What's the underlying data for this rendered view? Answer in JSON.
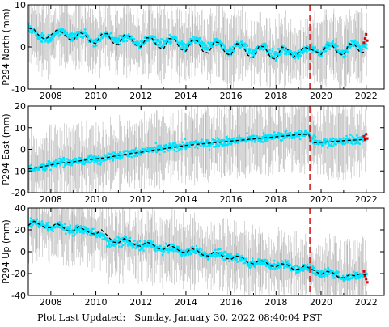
{
  "footer": {
    "label": "Plot Last Updated:",
    "value": "Sunday, January 30, 2022 08:40:04 PST"
  },
  "colors": {
    "data": "#00e5ff",
    "error_bars": "#a9a9a9",
    "model": "#000000",
    "event_line": "#d62020",
    "recent": "#e00000"
  },
  "chart_data": [
    {
      "type": "scatter",
      "title": "",
      "xlabel": "",
      "ylabel": "P294 North (mm)",
      "xlim": [
        2007.0,
        2022.8
      ],
      "ylim": [
        -10,
        10
      ],
      "xticks": [
        2008,
        2010,
        2012,
        2014,
        2016,
        2018,
        2020,
        2022
      ],
      "yticks": [
        -10,
        0,
        10
      ],
      "event_line_x": 2019.5,
      "series": [
        {
          "role": "data",
          "x": [
            2007.0,
            2007.5,
            2008.0,
            2008.5,
            2009.0,
            2009.5,
            2010.0,
            2010.5,
            2011.0,
            2011.5,
            2012.0,
            2012.5,
            2013.0,
            2013.5,
            2014.0,
            2014.5,
            2015.0,
            2015.5,
            2016.0,
            2016.5,
            2017.0,
            2017.5,
            2018.0,
            2018.5,
            2019.0,
            2019.5,
            2020.0,
            2020.5,
            2021.0,
            2021.5,
            2022.0
          ],
          "y": [
            4.8,
            2.0,
            1.5,
            4.0,
            3.0,
            3.5,
            1.0,
            3.0,
            2.0,
            2.5,
            0.5,
            2.5,
            1.5,
            2.0,
            0.5,
            2.0,
            1.0,
            1.5,
            -0.5,
            1.0,
            -1.0,
            0.5,
            -1.5,
            -1.0,
            -2.0,
            0.0,
            -1.5,
            1.0,
            -1.5,
            1.5,
            1.5
          ]
        },
        {
          "role": "model",
          "x": [
            2007.0,
            2007.25,
            2007.5,
            2007.75,
            2008.0,
            2008.25,
            2008.5,
            2008.75,
            2009.0,
            2009.25,
            2009.5,
            2009.75,
            2010.0,
            2010.25,
            2010.5,
            2010.75,
            2011.0,
            2011.25,
            2011.5,
            2011.75,
            2012.0,
            2012.25,
            2012.5,
            2012.75,
            2013.0,
            2013.25,
            2013.5,
            2013.75,
            2014.0,
            2014.25,
            2014.5,
            2014.75,
            2015.0,
            2015.25,
            2015.5,
            2015.75,
            2016.0,
            2016.25,
            2016.5,
            2016.75,
            2017.0,
            2017.25,
            2017.5,
            2017.75,
            2018.0,
            2018.25,
            2018.5,
            2018.75,
            2019.0,
            2019.25,
            2019.5,
            2019.75,
            2020.0,
            2020.25,
            2020.5,
            2020.75,
            2021.0,
            2021.25,
            2021.5,
            2021.75,
            2022.0
          ],
          "y": [
            4.5,
            4.2,
            2.5,
            1.8,
            2.8,
            4.0,
            3.5,
            2.0,
            1.5,
            3.5,
            3.0,
            1.2,
            0.8,
            3.0,
            3.2,
            1.0,
            0.5,
            2.8,
            2.5,
            0.5,
            0.0,
            2.2,
            2.0,
            0.0,
            -0.5,
            2.0,
            1.8,
            -0.5,
            -1.0,
            1.6,
            1.5,
            -1.0,
            -1.5,
            1.2,
            1.0,
            -1.5,
            -2.0,
            0.8,
            0.5,
            -2.0,
            -2.5,
            0.2,
            0.0,
            -2.5,
            -3.0,
            0.0,
            -0.5,
            -2.5,
            -1.5,
            0.0,
            -0.5,
            -1.0,
            -1.8,
            0.5,
            0.3,
            -1.5,
            -2.0,
            0.8,
            0.5,
            -1.5,
            -1.0
          ]
        },
        {
          "role": "recent",
          "x": [
            2021.9,
            2021.95,
            2022.0,
            2022.05
          ],
          "y": [
            1.0,
            2.0,
            3.0,
            1.5
          ]
        }
      ]
    },
    {
      "type": "scatter",
      "title": "",
      "xlabel": "",
      "ylabel": "P294 East (mm)",
      "xlim": [
        2007.0,
        2022.8
      ],
      "ylim": [
        -20,
        20
      ],
      "xticks": [
        2008,
        2010,
        2012,
        2014,
        2016,
        2018,
        2020,
        2022
      ],
      "yticks": [
        -20,
        -10,
        0,
        10,
        20
      ],
      "event_line_x": 2019.5,
      "series": [
        {
          "role": "data",
          "x": [
            2007.0,
            2007.5,
            2008.0,
            2008.5,
            2009.0,
            2009.5,
            2010.0,
            2010.5,
            2011.0,
            2011.5,
            2012.0,
            2012.5,
            2013.0,
            2013.5,
            2014.0,
            2014.5,
            2015.0,
            2015.5,
            2016.0,
            2016.5,
            2017.0,
            2017.5,
            2018.0,
            2018.5,
            2019.0,
            2019.5,
            2020.0,
            2020.5,
            2021.0,
            2021.5,
            2022.0
          ],
          "y": [
            -9.0,
            -8.5,
            -7.0,
            -6.0,
            -5.5,
            -5.0,
            -4.5,
            -3.5,
            -2.5,
            -1.5,
            -1.0,
            0.0,
            0.5,
            1.5,
            2.0,
            2.5,
            3.0,
            3.5,
            4.0,
            4.5,
            5.0,
            5.5,
            6.0,
            6.5,
            7.0,
            7.0,
            3.0,
            3.5,
            4.0,
            4.5,
            5.0
          ]
        },
        {
          "role": "model",
          "x": [
            2007.0,
            2007.5,
            2008.0,
            2008.5,
            2009.0,
            2009.5,
            2010.0,
            2010.5,
            2011.0,
            2011.5,
            2012.0,
            2012.5,
            2013.0,
            2013.5,
            2014.0,
            2014.5,
            2015.0,
            2015.5,
            2016.0,
            2016.5,
            2017.0,
            2017.5,
            2018.0,
            2018.5,
            2019.0,
            2019.45,
            2019.55,
            2020.0,
            2020.5,
            2021.0,
            2021.5,
            2022.0
          ],
          "y": [
            -9.0,
            -8.3,
            -7.2,
            -6.3,
            -5.8,
            -5.0,
            -4.4,
            -3.8,
            -2.8,
            -2.0,
            -1.4,
            -0.5,
            0.2,
            1.0,
            1.8,
            2.3,
            2.8,
            3.3,
            3.8,
            4.3,
            4.8,
            5.3,
            5.8,
            6.3,
            6.8,
            7.0,
            3.0,
            3.2,
            3.6,
            4.0,
            4.3,
            4.6
          ]
        },
        {
          "role": "recent",
          "x": [
            2021.9,
            2021.95,
            2022.0,
            2022.05
          ],
          "y": [
            6.0,
            4.5,
            7.0,
            5.0
          ]
        }
      ]
    },
    {
      "type": "scatter",
      "title": "",
      "xlabel": "",
      "ylabel": "P294 Up (mm)",
      "xlim": [
        2007.0,
        2022.8
      ],
      "ylim": [
        -40,
        40
      ],
      "xticks": [
        2008,
        2010,
        2012,
        2014,
        2016,
        2018,
        2020,
        2022
      ],
      "yticks": [
        -40,
        -20,
        0,
        20,
        40
      ],
      "event_line_x": 2019.5,
      "series": [
        {
          "role": "data",
          "x": [
            2007.0,
            2007.5,
            2008.0,
            2008.5,
            2009.0,
            2009.5,
            2010.0,
            2010.5,
            2011.0,
            2011.5,
            2012.0,
            2012.5,
            2013.0,
            2013.5,
            2014.0,
            2014.5,
            2015.0,
            2015.5,
            2016.0,
            2016.5,
            2017.0,
            2017.5,
            2018.0,
            2018.5,
            2019.0,
            2019.5,
            2020.0,
            2020.5,
            2021.0,
            2021.5,
            2022.0
          ],
          "y": [
            25,
            27,
            22,
            24,
            18,
            20,
            16,
            5,
            10,
            8,
            3,
            6,
            0,
            3,
            -2,
            1,
            -4,
            -1,
            -5,
            -7,
            -12,
            -9,
            -14,
            -11,
            -17,
            -15,
            -22,
            -18,
            -25,
            -22,
            -20
          ]
        },
        {
          "role": "model",
          "x": [
            2007.0,
            2007.25,
            2007.5,
            2007.75,
            2008.0,
            2008.25,
            2008.5,
            2008.75,
            2009.0,
            2009.25,
            2009.5,
            2009.75,
            2010.0,
            2010.25,
            2010.5,
            2010.75,
            2011.0,
            2011.25,
            2011.5,
            2011.75,
            2012.0,
            2012.25,
            2012.5,
            2012.75,
            2013.0,
            2013.25,
            2013.5,
            2013.75,
            2014.0,
            2014.25,
            2014.5,
            2014.75,
            2015.0,
            2015.25,
            2015.5,
            2015.75,
            2016.0,
            2016.25,
            2016.5,
            2016.75,
            2017.0,
            2017.25,
            2017.5,
            2017.75,
            2018.0,
            2018.25,
            2018.5,
            2018.75,
            2019.0,
            2019.25,
            2019.5,
            2019.75,
            2020.0,
            2020.25,
            2020.5,
            2020.75,
            2021.0,
            2021.25,
            2021.5,
            2021.75,
            2022.0
          ],
          "y": [
            24,
            28,
            25,
            22,
            22,
            26,
            23,
            19,
            19,
            23,
            20,
            17,
            16,
            20,
            15,
            9,
            8,
            12,
            10,
            6,
            5,
            9,
            7,
            3,
            2,
            6,
            4,
            0,
            -1,
            3,
            1,
            -3,
            -4,
            0,
            -2,
            -6,
            -7,
            -4,
            -5,
            -10,
            -11,
            -8,
            -9,
            -13,
            -14,
            -11,
            -12,
            -16,
            -16,
            -13,
            -15,
            -18,
            -21,
            -18,
            -19,
            -23,
            -24,
            -21,
            -22,
            -20,
            -21
          ]
        },
        {
          "role": "recent",
          "x": [
            2021.9,
            2021.95,
            2022.0,
            2022.05
          ],
          "y": [
            -18,
            -22,
            -25,
            -28
          ]
        }
      ]
    }
  ]
}
